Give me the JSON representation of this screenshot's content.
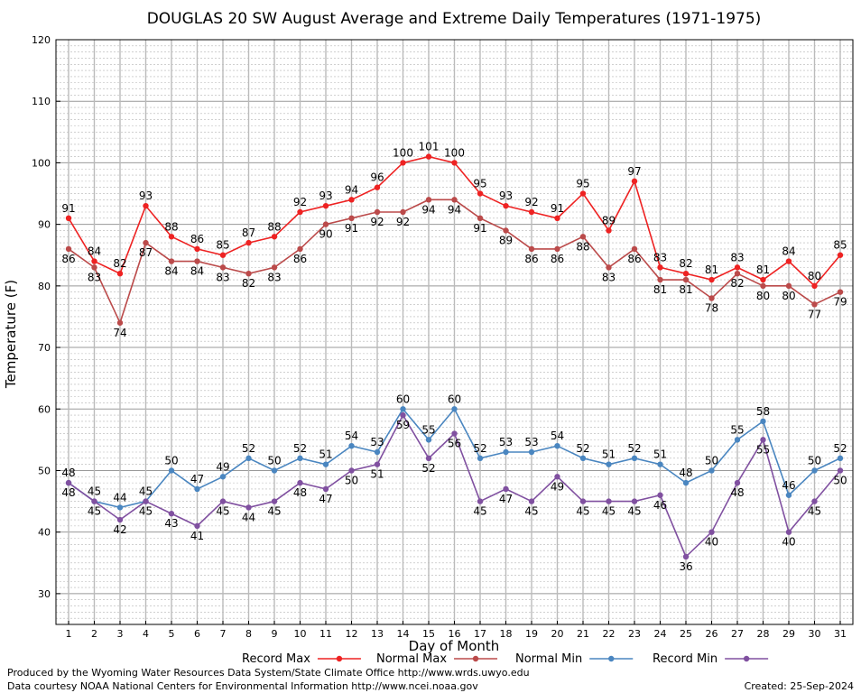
{
  "chart_data": {
    "type": "line",
    "title": "DOUGLAS 20 SW August Average and Extreme Daily Temperatures (1971-1975)",
    "xlabel": "Day of Month",
    "ylabel": "Temperature (F)",
    "xlim": [
      1,
      31
    ],
    "ylim": [
      25,
      120
    ],
    "yticks": [
      30,
      40,
      50,
      60,
      70,
      80,
      90,
      100,
      110,
      120
    ],
    "x": [
      1,
      2,
      3,
      4,
      5,
      6,
      7,
      8,
      9,
      10,
      11,
      12,
      13,
      14,
      15,
      16,
      17,
      18,
      19,
      20,
      21,
      22,
      23,
      24,
      25,
      26,
      27,
      28,
      29,
      30,
      31
    ],
    "grid": true,
    "legend_position": "bottom",
    "series": [
      {
        "name": "Record Max",
        "color": "#ee2222",
        "values": [
          91,
          84,
          82,
          93,
          88,
          86,
          85,
          87,
          88,
          92,
          93,
          94,
          96,
          100,
          101,
          100,
          95,
          93,
          92,
          91,
          95,
          89,
          97,
          83,
          82,
          81,
          83,
          81,
          84,
          80,
          85
        ]
      },
      {
        "name": "Normal Max",
        "color": "#bb4a4a",
        "values": [
          86,
          83,
          74,
          87,
          84,
          84,
          83,
          82,
          83,
          86,
          90,
          91,
          92,
          92,
          94,
          94,
          91,
          89,
          86,
          86,
          88,
          83,
          86,
          81,
          81,
          78,
          82,
          80,
          80,
          77,
          79
        ]
      },
      {
        "name": "Normal Min",
        "color": "#4a86c0",
        "values": [
          48,
          45,
          44,
          45,
          50,
          47,
          49,
          52,
          50,
          52,
          51,
          54,
          53,
          60,
          55,
          60,
          52,
          53,
          53,
          54,
          52,
          51,
          52,
          51,
          48,
          50,
          55,
          58,
          46,
          50,
          52
        ]
      },
      {
        "name": "Record Min",
        "color": "#8050a0",
        "values": [
          48,
          45,
          42,
          45,
          43,
          41,
          45,
          44,
          45,
          48,
          47,
          50,
          51,
          59,
          52,
          56,
          45,
          47,
          45,
          49,
          45,
          45,
          45,
          46,
          36,
          40,
          48,
          55,
          40,
          45,
          50
        ]
      }
    ]
  },
  "footer": {
    "produced_by": "Produced by the Wyoming Water Resources Data System/State Climate Office http://www.wrds.uwyo.edu",
    "data_courtesy": "Data courtesy NOAA National Centers for Environmental Information http://www.ncei.noaa.gov",
    "created": "Created:  25-Sep-2024"
  }
}
